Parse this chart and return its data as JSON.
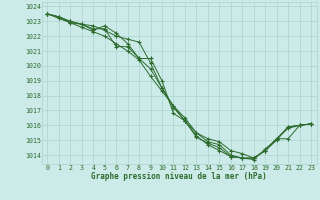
{
  "title": "Graphe pression niveau de la mer (hPa)",
  "bg_color": "#cceae8",
  "grid_color": "#aad4d0",
  "line_color": "#2d6b2d",
  "xlim": [
    -0.5,
    23.5
  ],
  "ylim": [
    1013.4,
    1024.3
  ],
  "yticks": [
    1014,
    1015,
    1016,
    1017,
    1018,
    1019,
    1020,
    1021,
    1022,
    1023,
    1024
  ],
  "xticks": [
    0,
    1,
    2,
    3,
    4,
    5,
    6,
    7,
    8,
    9,
    10,
    11,
    12,
    13,
    14,
    15,
    16,
    17,
    18,
    19,
    20,
    21,
    22,
    23
  ],
  "series": [
    [
      1023.5,
      1023.3,
      1023.0,
      1022.8,
      1022.4,
      1022.7,
      1022.2,
      1021.5,
      1020.5,
      1019.8,
      1018.5,
      1017.3,
      1016.5,
      1015.5,
      1015.1,
      1014.9,
      1014.3,
      1014.1,
      1013.8,
      1014.3,
      1015.1,
      1015.8,
      1016.0,
      1016.1
    ],
    [
      1023.5,
      1023.3,
      1023.0,
      1022.8,
      1022.5,
      1022.5,
      1021.3,
      1021.3,
      1020.5,
      1020.5,
      1019.0,
      1016.8,
      1016.3,
      1015.5,
      1014.9,
      1014.7,
      1014.0,
      1013.8,
      1013.7,
      1014.4,
      1015.1,
      1015.1,
      1016.0,
      1016.1
    ],
    [
      1023.5,
      1023.3,
      1022.9,
      1022.8,
      1022.7,
      1022.4,
      1022.0,
      1021.8,
      1021.6,
      1020.2,
      1018.5,
      1017.2,
      1016.3,
      1015.2,
      1014.8,
      1014.5,
      1013.9,
      1013.8,
      1013.8,
      1014.3,
      1015.1,
      1015.9,
      1016.0,
      1016.1
    ],
    [
      1023.5,
      1023.2,
      1022.9,
      1022.6,
      1022.3,
      1022.0,
      1021.5,
      1021.0,
      1020.4,
      1019.3,
      1018.3,
      1017.3,
      1016.3,
      1015.3,
      1014.7,
      1014.3,
      1013.9,
      1013.8,
      1013.8,
      1014.3,
      1015.0,
      1015.9,
      1016.0,
      1016.1
    ]
  ]
}
